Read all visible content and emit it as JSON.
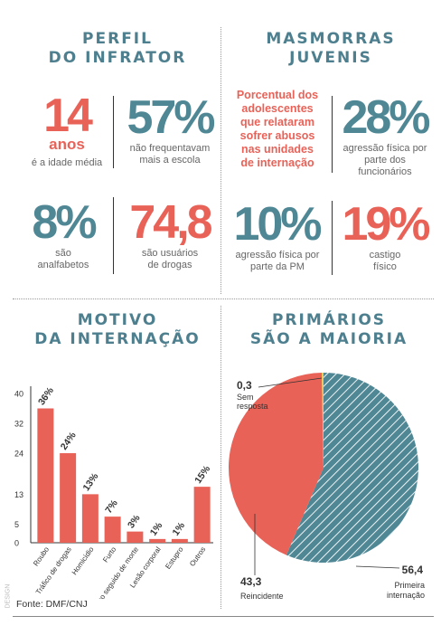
{
  "perfil": {
    "title_line1": "PERFIL",
    "title_line2": "DO INFRATOR",
    "stat1": {
      "value": "14",
      "unit": "anos",
      "caption": "é a idade média"
    },
    "stat2": {
      "value": "57%",
      "caption_line1": "não frequentavam",
      "caption_line2": "mais a escola"
    },
    "stat3": {
      "value": "8%",
      "caption_line1": "são",
      "caption_line2": "analfabetos"
    },
    "stat4": {
      "value": "74,8",
      "caption_line1": "são usuários",
      "caption_line2": "de drogas"
    }
  },
  "masmorras": {
    "title_line1": "MASMORRAS",
    "title_line2": "JUVENIS",
    "intro": [
      "Porcentual dos",
      "adolescentes",
      "que relataram",
      "sofrer abusos",
      "nas unidades",
      "de internação"
    ],
    "stat1": {
      "value": "28%",
      "caption_line1": "agressão física por",
      "caption_line2": "parte dos",
      "caption_line3": "funcionários"
    },
    "stat2": {
      "value": "10%",
      "caption_line1": "agressão física por",
      "caption_line2": "parte da PM"
    },
    "stat3": {
      "value": "19%",
      "caption_line1": "castigo",
      "caption_line2": "físico"
    }
  },
  "motivo": {
    "title_line1": "MOTIVO",
    "title_line2": "DA INTERNAÇÃO",
    "source": "Fonte: DMF/CNJ"
  },
  "primarios": {
    "title_line1": "PRIMÁRIOS",
    "title_line2": "SÃO A MAIORIA"
  },
  "side_credit": "DESIGN",
  "colors": {
    "teal": "#4f8795",
    "red": "#e96258",
    "yellow": "#f2c94c"
  },
  "chart_data": [
    {
      "type": "bar",
      "title": "MOTIVO DA INTERNAÇÃO",
      "categories": [
        "Roubo",
        "Tráfico de drogas",
        "Homicídio",
        "Furto",
        "Roubo seguido de morte",
        "Lesão corporal",
        "Estupro",
        "Outros"
      ],
      "values": [
        36,
        24,
        13,
        7,
        3,
        1,
        1,
        15
      ],
      "labels": [
        "36%",
        "24%",
        "13%",
        "7%",
        "3%",
        "1%",
        "1%",
        "15%"
      ],
      "yticks": [
        0,
        5,
        13,
        24,
        32,
        40
      ],
      "ylim": [
        0,
        40
      ]
    },
    {
      "type": "pie",
      "title": "PRIMÁRIOS SÃO A MAIORIA",
      "slices": [
        {
          "label": "Primeira internação",
          "value": 56.4,
          "value_text": "56,4",
          "color": "#4f8795"
        },
        {
          "label": "Reincidente",
          "value": 43.3,
          "value_text": "43,3",
          "color": "#e96258"
        },
        {
          "label": "Sem resposta",
          "value": 0.3,
          "value_text": "0,3",
          "color": "#f2c94c"
        }
      ]
    }
  ]
}
